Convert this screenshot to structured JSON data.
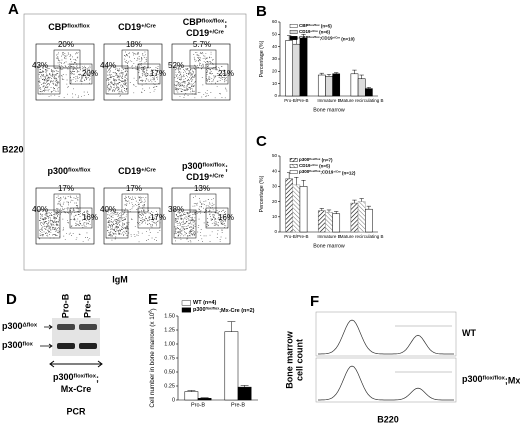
{
  "panels": {
    "A": {
      "label": "A",
      "y_axis": "B220",
      "x_axis": "IgM",
      "plots": [
        {
          "title": [
            [
              {
                "t": "CBP"
              },
              {
                "s": "flox/flox"
              }
            ]
          ],
          "left": "43%",
          "top": "20%",
          "right": "20%"
        },
        {
          "title": [
            [
              {
                "t": "CD19"
              },
              {
                "s": "+/Cre"
              }
            ]
          ],
          "left": "44%",
          "top": "18%",
          "right": "17%"
        },
        {
          "title": [
            [
              {
                "t": "CBP"
              },
              {
                "s": "flox/flox"
              },
              {
                "t": ";"
              }
            ],
            [
              {
                "t": "CD19"
              },
              {
                "s": "+/Cre"
              }
            ]
          ],
          "left": "52%",
          "top": "5.7%",
          "right": "21%"
        },
        {
          "title": [
            [
              {
                "t": "p300"
              },
              {
                "s": "flox/flox"
              }
            ]
          ],
          "left": "40%",
          "top": "17%",
          "right": "16%"
        },
        {
          "title": [
            [
              {
                "t": "CD19"
              },
              {
                "s": "+/Cre"
              }
            ]
          ],
          "left": "40%",
          "top": "17%",
          "right": "17%"
        },
        {
          "title": [
            [
              {
                "t": "p300"
              },
              {
                "s": "flox/flox"
              },
              {
                "t": ";"
              }
            ],
            [
              {
                "t": "CD19"
              },
              {
                "s": "+/Cre"
              }
            ]
          ],
          "left": "38%",
          "top": "13%",
          "right": "16%"
        }
      ]
    },
    "D": {
      "label": "D",
      "lanes": [
        "Pro-B",
        "Pre-B"
      ],
      "bands": [
        [
          {
            "t": "p300"
          },
          {
            "s": "Δflox"
          }
        ],
        [
          {
            "t": "p300"
          },
          {
            "s": "flox"
          }
        ]
      ],
      "genotype": [
        [
          {
            "t": "p300"
          },
          {
            "s": "flox/flox"
          },
          {
            "t": ";"
          }
        ],
        [
          {
            "t": "Mx-Cre"
          }
        ]
      ],
      "method": "PCR"
    },
    "F": {
      "label": "F",
      "y_axis": [
        "Bone marrow",
        "cell count"
      ],
      "x_axis": "B220",
      "traces": [
        [
          {
            "t": "WT"
          }
        ],
        [
          {
            "t": "p300"
          },
          {
            "s": "flox/flox"
          },
          {
            "t": ";Mx-Cre"
          }
        ]
      ]
    }
  },
  "chart_data": [
    {
      "type": "bar",
      "panel_label": "B",
      "ylabel": [
        {
          "t": "Percentage (%)"
        }
      ],
      "xlabel": "Bone marrow",
      "categories": [
        "Pro-B/Pre-B",
        "Immature B",
        "Mature recirculating B"
      ],
      "ylim": [
        0,
        60
      ],
      "yticks": [
        0,
        10,
        20,
        30,
        40,
        50,
        60
      ],
      "series": [
        {
          "name": [
            {
              "t": "CBP"
            },
            {
              "s": "flox/flox"
            },
            {
              "t": " (n=5)"
            }
          ],
          "color": "#ffffff",
          "hatch": false,
          "values": [
            45,
            17,
            18
          ],
          "errors": [
            4,
            1.5,
            3
          ]
        },
        {
          "name": [
            {
              "t": "CD19"
            },
            {
              "s": "+/Cre"
            },
            {
              "t": " (n=6)"
            }
          ],
          "color": "#dcdcdc",
          "hatch": false,
          "values": [
            42,
            16,
            14
          ],
          "errors": [
            5,
            1.5,
            3
          ]
        },
        {
          "name": [
            {
              "t": "CBP"
            },
            {
              "s": "flox/flox"
            },
            {
              "t": ";CD19"
            },
            {
              "s": "+/Cre"
            },
            {
              "t": " (n=10)"
            }
          ],
          "color": "#000000",
          "hatch": false,
          "values": [
            47,
            18,
            6
          ],
          "errors": [
            3,
            1,
            1
          ]
        }
      ]
    },
    {
      "type": "bar",
      "panel_label": "C",
      "ylabel": [
        {
          "t": "Percentage (%)"
        }
      ],
      "xlabel": "Bone marrow",
      "categories": [
        "Pro-B/Pre-B",
        "Immature B",
        "Mature recirculating B"
      ],
      "ylim": [
        0,
        50
      ],
      "yticks": [
        0,
        10,
        20,
        30,
        40,
        50
      ],
      "series": [
        {
          "name": [
            {
              "t": "p300"
            },
            {
              "s": "flox/flox"
            },
            {
              "t": " (n=7)"
            }
          ],
          "color": "#555555",
          "hatch": true,
          "values": [
            35,
            14,
            19
          ],
          "errors": [
            4,
            1.5,
            2
          ]
        },
        {
          "name": [
            {
              "t": "CD19"
            },
            {
              "s": "+/Cre"
            },
            {
              "t": " (n=5)"
            }
          ],
          "color": "#999999",
          "hatch": true,
          "values": [
            31,
            13,
            20
          ],
          "errors": [
            5,
            1.5,
            2
          ]
        },
        {
          "name": [
            {
              "t": "p300"
            },
            {
              "s": "flox/flox"
            },
            {
              "t": ";CD19"
            },
            {
              "s": "+/Cre"
            },
            {
              "t": " (n=12)"
            }
          ],
          "color": "#ffffff",
          "hatch": false,
          "values": [
            30,
            12,
            15
          ],
          "errors": [
            4,
            1.5,
            2
          ]
        }
      ]
    },
    {
      "type": "bar",
      "panel_label": "E",
      "ylabel": [
        {
          "t": "Cell number in bone marrow (x 10"
        },
        {
          "s": "8"
        },
        {
          "t": ")"
        }
      ],
      "xlabel": "",
      "categories": [
        "Pro-B",
        "Pre-B"
      ],
      "ylim": [
        0,
        1.5
      ],
      "yticks": [
        0,
        0.25,
        {
          "value": 0.5,
          "label": "0.50"
        },
        0.75,
        {
          "value": 1,
          "label": "1.00"
        },
        1.25,
        {
          "value": 1.5,
          "label": "1.50"
        }
      ],
      "series": [
        {
          "name": [
            {
              "t": "WT (n=4)"
            }
          ],
          "color": "#ffffff",
          "hatch": false,
          "values": [
            0.15,
            1.22
          ],
          "errors": [
            0.02,
            0.18
          ]
        },
        {
          "name": [
            {
              "t": "p300"
            },
            {
              "s": "flox/flox"
            },
            {
              "t": ";Mx-Cre (n=2)"
            }
          ],
          "color": "#000000",
          "hatch": false,
          "values": [
            0.03,
            0.23
          ],
          "errors": [
            0.01,
            0.03
          ]
        }
      ]
    }
  ]
}
